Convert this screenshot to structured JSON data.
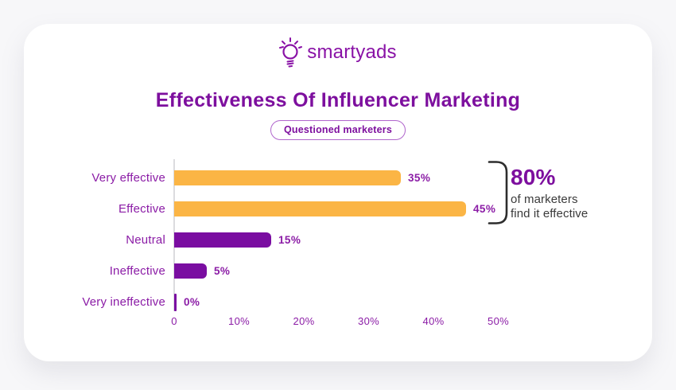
{
  "page": {
    "background": "#f7f7f9",
    "card_background": "#ffffff"
  },
  "brand": {
    "name": "smartyads",
    "color": "#8912a6",
    "icon": "lightbulb-icon"
  },
  "title": {
    "text": "Effectiveness Of Influencer Marketing",
    "color": "#7d0f9e"
  },
  "badge": {
    "label": "Questioned marketers"
  },
  "chart_data": {
    "type": "bar",
    "orientation": "horizontal",
    "title": "Effectiveness Of Influencer Marketing",
    "subtitle": "Questioned marketers",
    "categories": [
      "Very effective",
      "Effective",
      "Neutral",
      "Ineffective",
      "Very ineffective"
    ],
    "values": [
      35,
      45,
      15,
      5,
      0
    ],
    "value_labels": [
      "35%",
      "45%",
      "15%",
      "5%",
      "0%"
    ],
    "bar_colors": [
      "#FBB545",
      "#FBB545",
      "#7A0DA1",
      "#7A0DA1",
      "#7A0DA1"
    ],
    "x_ticks": [
      "0",
      "10%",
      "20%",
      "30%",
      "40%",
      "50%"
    ],
    "x_tick_values": [
      0,
      10,
      20,
      30,
      40,
      50
    ],
    "xlim": [
      0,
      50
    ],
    "grid": false,
    "label_color": "#8b1ca6",
    "colors": {
      "orange": "#FBB545",
      "purple": "#7A0DA1"
    }
  },
  "annotation": {
    "headline": "80%",
    "line1": "of marketers",
    "line2": "find it effective",
    "bracket_color": "#2d2d2d"
  }
}
